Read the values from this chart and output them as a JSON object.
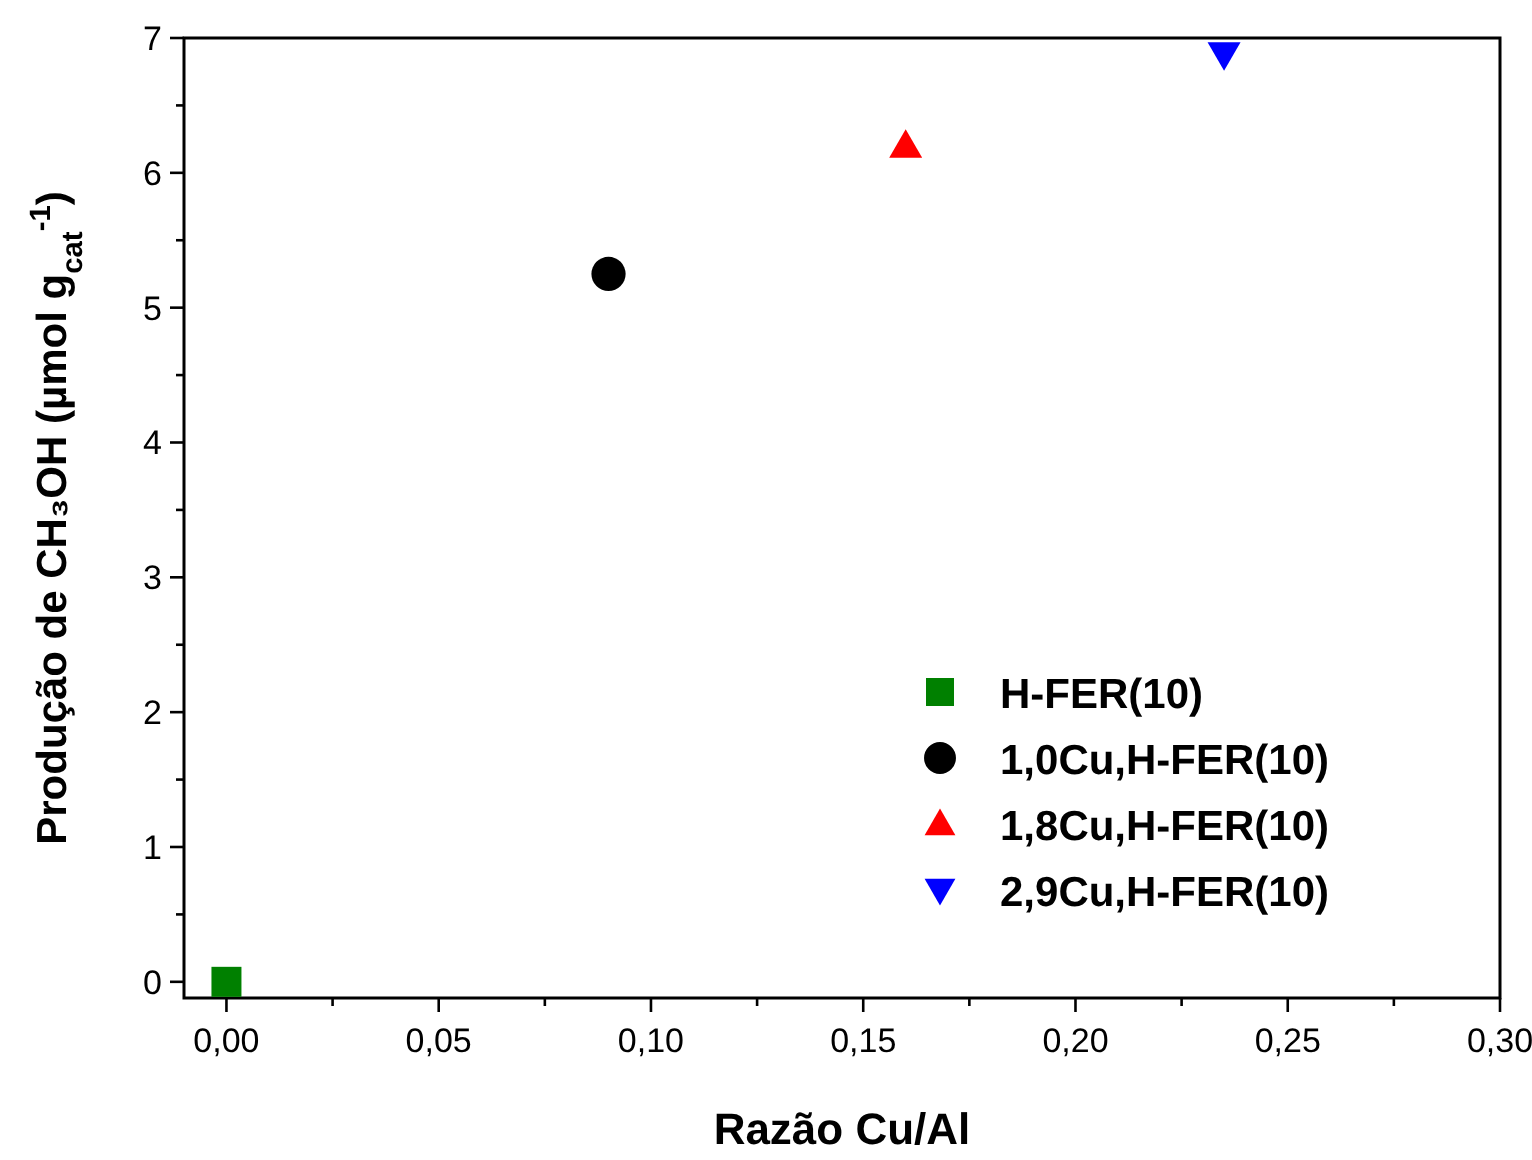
{
  "chart_data": {
    "type": "scatter",
    "xlabel": "Razão Cu/Al",
    "ylabel": "Produção de CH₃OH (µmol g$_{cat}$$^{-1}$)",
    "xlim": [
      -0.01,
      0.3
    ],
    "ylim": [
      -0.12,
      7
    ],
    "xticks": [
      {
        "value": 0,
        "label": "0,00"
      },
      {
        "value": 0.025,
        "label": null
      },
      {
        "value": 0.05,
        "label": "0,05"
      },
      {
        "value": 0.075,
        "label": null
      },
      {
        "value": 0.1,
        "label": "0,10"
      },
      {
        "value": 0.125,
        "label": null
      },
      {
        "value": 0.15,
        "label": "0,15"
      },
      {
        "value": 0.175,
        "label": null
      },
      {
        "value": 0.2,
        "label": "0,20"
      },
      {
        "value": 0.225,
        "label": null
      },
      {
        "value": 0.25,
        "label": "0,25"
      },
      {
        "value": 0.275,
        "label": null
      },
      {
        "value": 0.3,
        "label": "0,30"
      }
    ],
    "yticks": [
      0,
      {
        "value": 0.5,
        "label": null
      },
      1,
      {
        "value": 1.5,
        "label": null
      },
      2,
      {
        "value": 2.5,
        "label": null
      },
      3,
      {
        "value": 3.5,
        "label": null
      },
      4,
      {
        "value": 4.5,
        "label": null
      },
      5,
      {
        "value": 5.5,
        "label": null
      },
      6,
      {
        "value": 6.5,
        "label": null
      },
      7
    ],
    "grid": false,
    "legend": "bottom right",
    "series": [
      {
        "name": "H-FER(10)",
        "color": "#008000",
        "marker": "square",
        "x": [
          0
        ],
        "values": [
          0
        ]
      },
      {
        "name": "1,0Cu,H-FER(10)",
        "color": "#000000",
        "marker": "circle",
        "x": [
          0.09
        ],
        "values": [
          5.25
        ]
      },
      {
        "name": "1,8Cu,H-FER(10)",
        "color": "#ff0000",
        "marker": "triangle",
        "x": [
          0.16
        ],
        "values": [
          6.2
        ]
      },
      {
        "name": "2,9Cu,H-FER(10)",
        "color": "#0000ff",
        "marker": "triangle-down",
        "x": [
          0.235
        ],
        "values": [
          6.88
        ]
      }
    ]
  }
}
